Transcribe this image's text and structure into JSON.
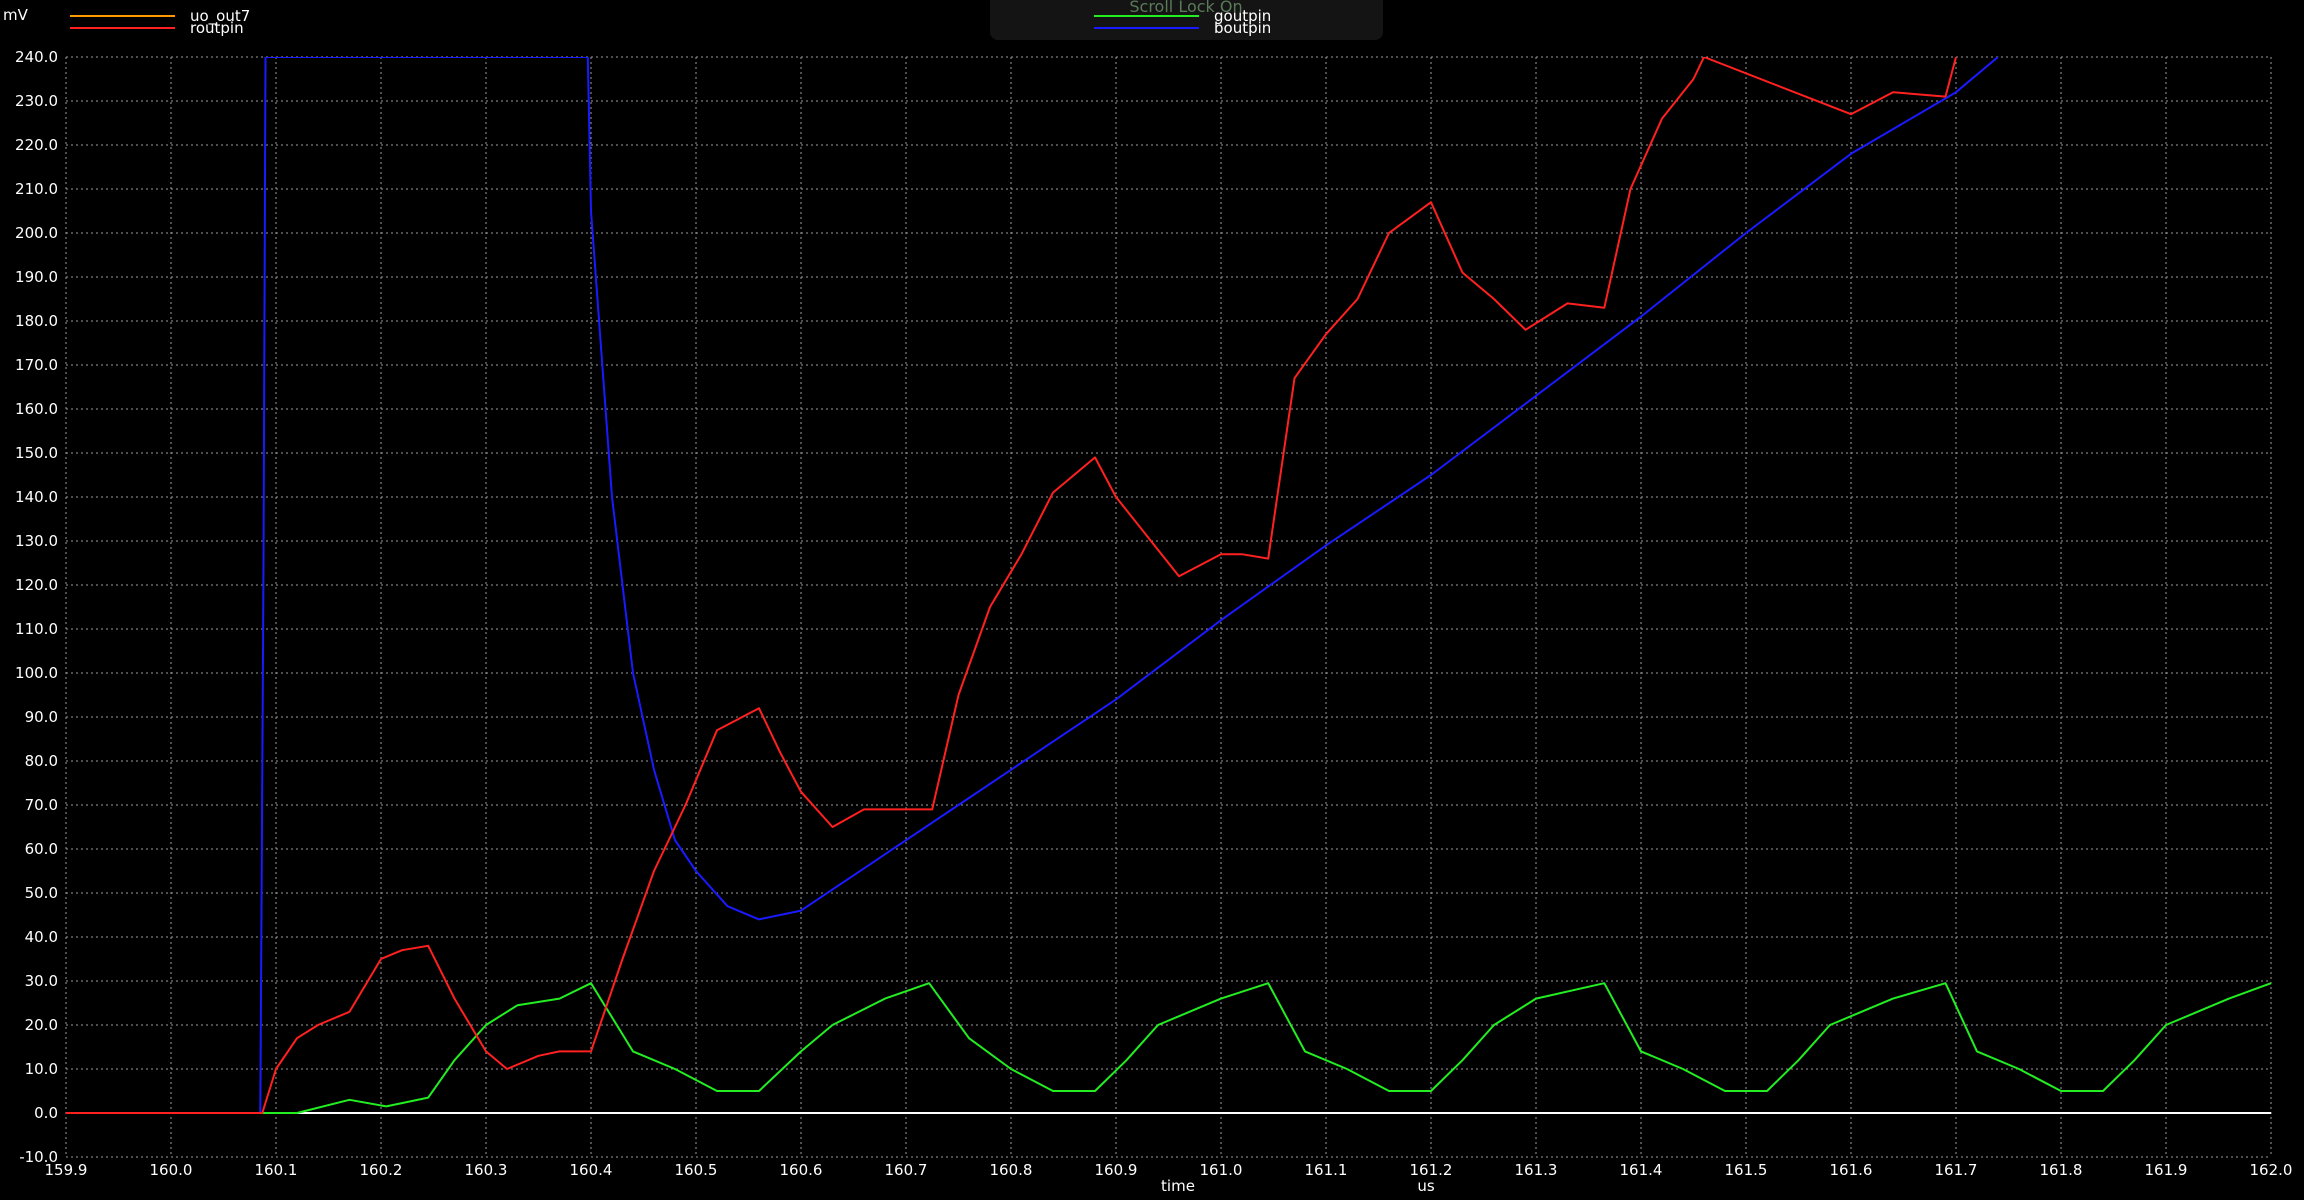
{
  "overlay": {
    "text": "Scroll Lock On"
  },
  "chart_data": {
    "type": "line",
    "xlabel": "time",
    "xunit": "us",
    "yunit": "mV",
    "xlim": [
      159.9,
      162.0
    ],
    "ylim": [
      -10.0,
      240.0
    ],
    "x_ticks": [
      159.9,
      160.0,
      160.1,
      160.2,
      160.3,
      160.4,
      160.5,
      160.6,
      160.7,
      160.8,
      160.9,
      161.0,
      161.1,
      161.2,
      161.3,
      161.4,
      161.5,
      161.6,
      161.7,
      161.8,
      161.9,
      162.0
    ],
    "x_tick_labels": [
      "159.9",
      "160.0",
      "160.1",
      "160.2",
      "160.3",
      "160.4",
      "160.5",
      "160.6",
      "160.7",
      "160.8",
      "160.9",
      "161.0",
      "161.1",
      "161.2",
      "161.3",
      "161.4",
      "161.5",
      "161.6",
      "161.7",
      "161.8",
      "161.9",
      "162.0"
    ],
    "y_ticks": [
      -10,
      0,
      10,
      20,
      30,
      40,
      50,
      60,
      70,
      80,
      90,
      100,
      110,
      120,
      130,
      140,
      150,
      160,
      170,
      180,
      190,
      200,
      210,
      220,
      230,
      240
    ],
    "y_tick_labels": [
      "-10.0",
      "0.0",
      "10.0",
      "20.0",
      "30.0",
      "40.0",
      "50.0",
      "60.0",
      "70.0",
      "80.0",
      "90.0",
      "100.0",
      "110.0",
      "120.0",
      "130.0",
      "140.0",
      "150.0",
      "160.0",
      "170.0",
      "180.0",
      "190.0",
      "200.0",
      "210.0",
      "220.0",
      "230.0",
      "240.0"
    ],
    "grid": true,
    "legend": {
      "placement": "top"
    },
    "series": [
      {
        "name": "uo_out7",
        "color": "#ff9900",
        "legend_group": "left",
        "x": [],
        "y": []
      },
      {
        "name": "routpin",
        "color": "#ff2020",
        "legend_group": "left",
        "x": [
          159.9,
          160.087,
          160.1,
          160.12,
          160.14,
          160.17,
          160.2,
          160.22,
          160.245,
          160.27,
          160.3,
          160.32,
          160.35,
          160.37,
          160.4,
          160.43,
          160.46,
          160.49,
          160.52,
          160.56,
          160.58,
          160.6,
          160.63,
          160.66,
          160.7,
          160.725,
          160.75,
          160.78,
          160.81,
          160.84,
          160.88,
          160.9,
          160.93,
          160.96,
          161.0,
          161.02,
          161.045,
          161.07,
          161.1,
          161.13,
          161.16,
          161.2,
          161.23,
          161.26,
          161.29,
          161.33,
          161.365,
          161.39,
          161.42,
          161.45,
          161.46,
          161.6,
          161.64,
          161.69,
          161.7
        ],
        "y": [
          0,
          0,
          10,
          17,
          20,
          23,
          35,
          37,
          38,
          26,
          14,
          10,
          13,
          14,
          14,
          35,
          55,
          70,
          87,
          92,
          82,
          73,
          65,
          69,
          69,
          69,
          95,
          115,
          127,
          141,
          149,
          140,
          131,
          122,
          127,
          127,
          126,
          167,
          177,
          185,
          200,
          207,
          191,
          185,
          178,
          184,
          183,
          210,
          226,
          235,
          240,
          227,
          232,
          231,
          240
        ]
      },
      {
        "name": "goutpin",
        "color": "#22ee22",
        "legend_group": "right",
        "x": [
          159.9,
          160.12,
          160.17,
          160.205,
          160.245,
          160.27,
          160.3,
          160.33,
          160.37,
          160.4,
          160.44,
          160.48,
          160.52,
          160.56,
          160.6,
          160.63,
          160.68,
          160.722,
          160.76,
          160.8,
          160.84,
          160.88,
          160.91,
          160.94,
          161.0,
          161.045,
          161.08,
          161.12,
          161.16,
          161.2,
          161.23,
          161.26,
          161.3,
          161.365,
          161.4,
          161.44,
          161.48,
          161.52,
          161.55,
          161.58,
          161.64,
          161.69,
          161.72,
          161.76,
          161.8,
          161.84,
          161.87,
          161.9,
          161.96,
          162.0
        ],
        "y": [
          0,
          0,
          3,
          1.5,
          3.5,
          12,
          20,
          24.5,
          26,
          29.5,
          14,
          10,
          5,
          5,
          14,
          20,
          26,
          29.5,
          17,
          10,
          5,
          5,
          12,
          20,
          26,
          29.5,
          14,
          10,
          5,
          5,
          12,
          20,
          26,
          29.5,
          14,
          10,
          5,
          5,
          12,
          20,
          26,
          29.5,
          14,
          10,
          5,
          5,
          12,
          20,
          26,
          29.5
        ]
      },
      {
        "name": "boutpin",
        "color": "#1a1aff",
        "legend_group": "right",
        "x": [
          159.9,
          160.085,
          160.088,
          160.09,
          160.397,
          160.4,
          160.42,
          160.44,
          160.46,
          160.48,
          160.5,
          160.53,
          160.56,
          160.6,
          160.65,
          160.7,
          160.75,
          160.8,
          160.85,
          160.9,
          160.95,
          161.0,
          161.1,
          161.2,
          161.3,
          161.4,
          161.5,
          161.6,
          161.7,
          161.74
        ],
        "y": [
          0,
          0,
          120,
          240,
          240,
          205,
          140,
          100,
          78,
          62,
          55,
          47,
          44,
          46,
          54,
          62,
          70,
          78,
          86,
          94,
          103,
          112,
          129,
          145,
          163,
          181,
          200,
          218,
          232,
          240
        ]
      }
    ]
  }
}
